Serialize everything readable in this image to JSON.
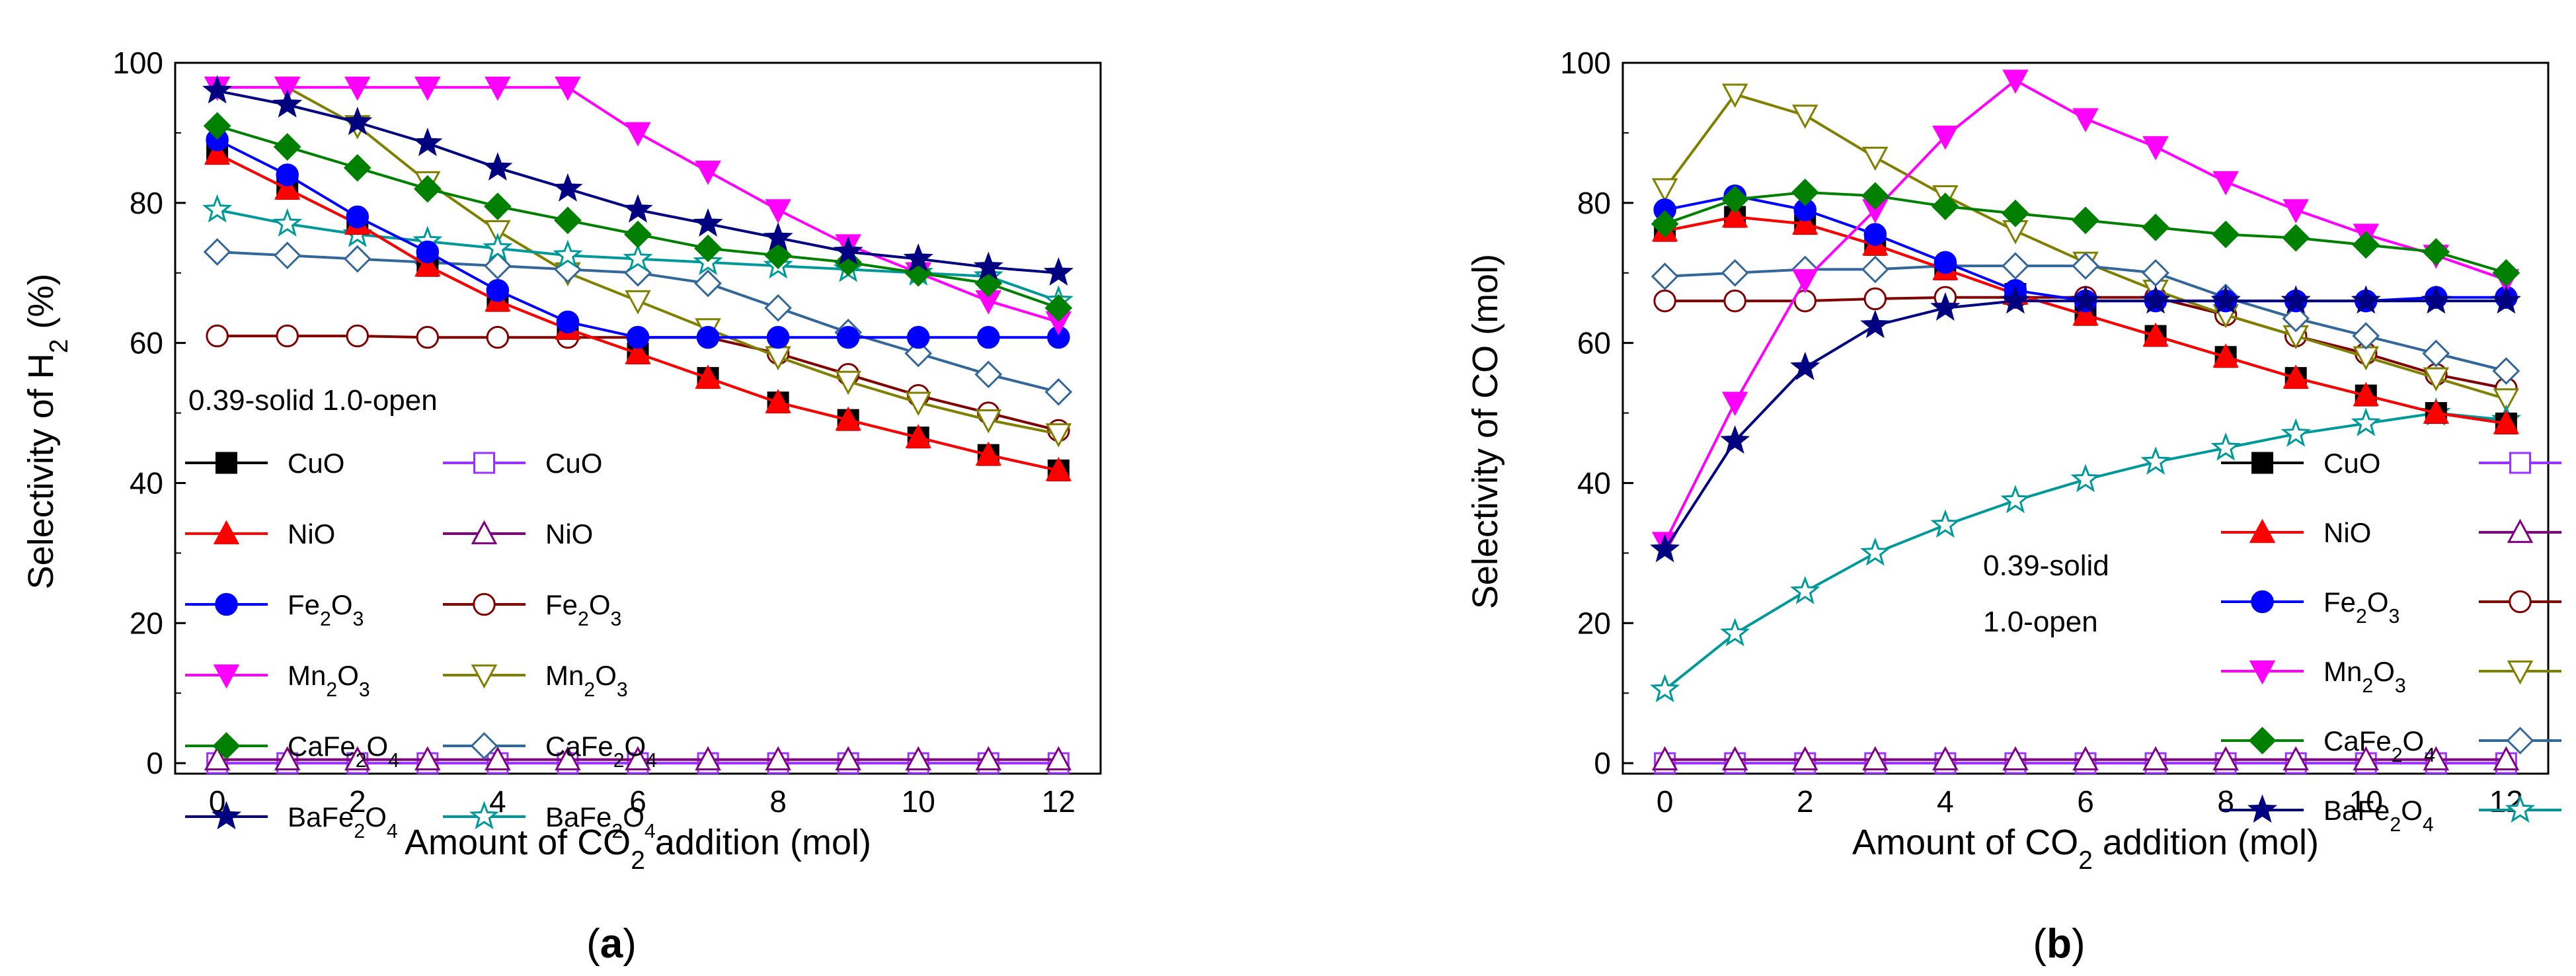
{
  "chart_data": [
    {
      "type": "line",
      "panel_label": "(a)",
      "panel_letter": "a",
      "xlabel": "Amount of CO2 addition (mol)",
      "xlabel_parts": [
        "Amount of CO",
        "2",
        " addition (mol)"
      ],
      "ylabel": "Selectivity of H2 (%)",
      "ylabel_parts": [
        "Selectivity of H",
        "2",
        " (%)"
      ],
      "xlim": [
        -0.6,
        12.6
      ],
      "ylim": [
        -1.5,
        100
      ],
      "xticks": [
        0,
        2,
        4,
        6,
        8,
        10,
        12
      ],
      "yticks": [
        0,
        20,
        40,
        60,
        80,
        100
      ],
      "legend_header": "0.39-solid   1.0-open",
      "notes": [],
      "x": [
        0,
        1,
        2,
        3,
        4,
        5,
        6,
        7,
        8,
        9,
        10,
        11,
        12
      ],
      "series": [
        {
          "name": "CuO",
          "state": "solid",
          "marker": "square",
          "color": "#000000",
          "values": [
            87,
            82,
            77,
            71,
            66,
            62,
            58.5,
            55,
            51.5,
            49,
            46.5,
            44,
            41.8
          ]
        },
        {
          "name": "NiO",
          "state": "solid",
          "marker": "triangle",
          "color": "#ff0000",
          "values": [
            87,
            82,
            77,
            71,
            66,
            62,
            58.5,
            55,
            51.5,
            49,
            46.5,
            44,
            41.8
          ]
        },
        {
          "name": "Fe2O3",
          "state": "solid",
          "marker": "circle",
          "color": "#0000ff",
          "values": [
            89,
            84,
            78,
            73,
            67.5,
            63,
            60.8,
            60.8,
            60.8,
            60.8,
            60.8,
            60.8,
            60.8
          ]
        },
        {
          "name": "Mn2O3",
          "state": "solid",
          "marker": "tri-down",
          "color": "#ff00ff",
          "values": [
            96.5,
            96.5,
            96.5,
            96.5,
            96.5,
            96.5,
            90,
            84.5,
            79,
            74,
            70,
            66,
            63
          ]
        },
        {
          "name": "CaFe2O4",
          "state": "solid",
          "marker": "diamond",
          "color": "#008000",
          "values": [
            91,
            88,
            85,
            82,
            79.5,
            77.5,
            75.5,
            73.5,
            72.5,
            71.5,
            70,
            68.5,
            65
          ]
        },
        {
          "name": "BaFe2O4",
          "state": "solid",
          "marker": "star",
          "color": "#000080",
          "values": [
            96,
            94,
            91.5,
            88.5,
            85,
            82,
            79,
            77,
            75,
            73,
            72,
            70.8,
            70
          ]
        },
        {
          "name": "CuO",
          "state": "open",
          "marker": "square",
          "color": "#9933ff",
          "values": [
            0,
            0,
            0,
            0,
            0,
            0,
            0,
            0,
            0,
            0,
            0,
            0,
            0
          ]
        },
        {
          "name": "NiO",
          "state": "open",
          "marker": "triangle",
          "color": "#800080",
          "values": [
            0.5,
            0.5,
            0.5,
            0.5,
            0.5,
            0.5,
            0.5,
            0.5,
            0.5,
            0.5,
            0.5,
            0.5,
            0.5
          ]
        },
        {
          "name": "Fe2O3",
          "state": "open",
          "marker": "circle",
          "color": "#800000",
          "values": [
            61,
            61,
            61,
            60.8,
            60.8,
            60.8,
            60.8,
            60.8,
            58.5,
            55.5,
            52.5,
            50,
            47.5
          ]
        },
        {
          "name": "Mn2O3",
          "state": "open",
          "marker": "tri-down",
          "color": "#808000",
          "values": [
            96.5,
            96.5,
            91,
            83,
            76,
            70,
            66,
            62,
            58,
            54.5,
            51.5,
            49,
            47
          ]
        },
        {
          "name": "CaFe2O4",
          "state": "open",
          "marker": "diamond",
          "color": "#336699",
          "values": [
            73,
            72.5,
            72,
            71.5,
            71,
            70.5,
            70,
            68.5,
            65,
            61.5,
            58.5,
            55.5,
            53
          ]
        },
        {
          "name": "BaFe2O4",
          "state": "open",
          "marker": "star",
          "color": "#009999",
          "values": [
            79,
            77,
            75.5,
            74.5,
            73.5,
            72.5,
            72,
            71.5,
            71,
            70.5,
            70,
            69.5,
            66
          ]
        }
      ],
      "legend_labels": [
        {
          "left": "CuO",
          "left_sub": "",
          "right": "CuO",
          "right_sub": ""
        },
        {
          "left": "NiO",
          "left_sub": "",
          "right": "NiO",
          "right_sub": ""
        },
        {
          "left": "Fe",
          "left_sub": "2",
          "left_rest": "O",
          "left_sub2": "3",
          "right": "Fe2O3"
        },
        {
          "left": "Mn2O3"
        },
        {
          "left": "CaFe2O4"
        },
        {
          "left": "BaFe2O4"
        }
      ]
    },
    {
      "type": "line",
      "panel_label": "(b)",
      "panel_letter": "b",
      "xlabel": "Amount of CO2 addition (mol)",
      "xlabel_parts": [
        "Amount of CO",
        "2",
        " addition (mol)"
      ],
      "ylabel": "Selectivity of CO (mol)",
      "ylabel_parts": [
        "Selectivity of CO (mol)"
      ],
      "xlim": [
        -0.6,
        12.6
      ],
      "ylim": [
        -1.5,
        100
      ],
      "xticks": [
        0,
        2,
        4,
        6,
        8,
        10,
        12
      ],
      "yticks": [
        0,
        20,
        40,
        60,
        80,
        100
      ],
      "legend_header": "",
      "notes": [
        "0.39-solid",
        "1.0-open"
      ],
      "x": [
        0,
        1,
        2,
        3,
        4,
        5,
        6,
        7,
        8,
        9,
        10,
        11,
        12
      ],
      "series": [
        {
          "name": "CuO",
          "state": "solid",
          "marker": "square",
          "color": "#000000",
          "values": [
            76,
            78,
            77,
            74,
            70.5,
            67,
            64,
            61,
            58,
            55,
            52.5,
            50,
            48.5
          ]
        },
        {
          "name": "NiO",
          "state": "solid",
          "marker": "triangle",
          "color": "#ff0000",
          "values": [
            76,
            78,
            77,
            74,
            70.5,
            67,
            64,
            61,
            58,
            55,
            52.5,
            50,
            48.5
          ]
        },
        {
          "name": "Fe2O3",
          "state": "solid",
          "marker": "circle",
          "color": "#0000ff",
          "values": [
            79,
            81,
            79,
            75.5,
            71.5,
            67.5,
            66,
            66,
            66,
            66,
            66,
            66.5,
            66.5
          ]
        },
        {
          "name": "Mn2O3",
          "state": "solid",
          "marker": "tri-down",
          "color": "#ff00ff",
          "values": [
            31.5,
            51.5,
            69,
            79,
            89.5,
            97.5,
            92,
            88,
            83,
            79,
            75.5,
            72.5,
            69
          ]
        },
        {
          "name": "CaFe2O4",
          "state": "solid",
          "marker": "diamond",
          "color": "#008000",
          "values": [
            77,
            80.5,
            81.5,
            81,
            79.5,
            78.5,
            77.5,
            76.5,
            75.5,
            75,
            74,
            73,
            70
          ]
        },
        {
          "name": "BaFe2O4",
          "state": "solid",
          "marker": "star",
          "color": "#000080",
          "values": [
            30.5,
            46,
            56.5,
            62.5,
            65,
            66,
            66,
            66,
            66,
            66,
            66,
            66,
            66
          ]
        },
        {
          "name": "CuO",
          "state": "open",
          "marker": "square",
          "color": "#9933ff",
          "values": [
            0,
            0,
            0,
            0,
            0,
            0,
            0,
            0,
            0,
            0,
            0,
            0,
            0
          ]
        },
        {
          "name": "NiO",
          "state": "open",
          "marker": "triangle",
          "color": "#800080",
          "values": [
            0.5,
            0.5,
            0.5,
            0.5,
            0.5,
            0.5,
            0.5,
            0.5,
            0.5,
            0.5,
            0.5,
            0.5,
            0.5
          ]
        },
        {
          "name": "Fe2O3",
          "state": "open",
          "marker": "circle",
          "color": "#800000",
          "values": [
            66,
            66,
            66,
            66.3,
            66.5,
            66.5,
            66.5,
            66.5,
            64,
            61,
            58.5,
            55.5,
            53.5
          ]
        },
        {
          "name": "Mn2O3",
          "state": "open",
          "marker": "tri-down",
          "color": "#808000",
          "values": [
            82,
            95.5,
            92.5,
            86.5,
            81,
            76,
            71.5,
            67.5,
            64,
            61,
            58,
            55,
            52
          ]
        },
        {
          "name": "CaFe2O4",
          "state": "open",
          "marker": "diamond",
          "color": "#336699",
          "values": [
            69.5,
            70,
            70.5,
            70.5,
            71,
            71,
            71,
            70,
            66.5,
            63.5,
            61,
            58.5,
            56
          ]
        },
        {
          "name": "BaFe2O4",
          "state": "open",
          "marker": "star",
          "color": "#009999",
          "values": [
            10.5,
            18.5,
            24.5,
            30,
            34,
            37.5,
            40.5,
            43,
            45,
            47,
            48.5,
            50,
            49
          ]
        }
      ]
    }
  ],
  "legend": {
    "rows": [
      {
        "solid": "CuO",
        "open": "CuO"
      },
      {
        "solid": "NiO",
        "open": "NiO"
      },
      {
        "solid": "Fe2O3",
        "open": "Fe2O3"
      },
      {
        "solid": "Mn2O3",
        "open": "Mn2O3"
      },
      {
        "solid": "CaFe2O4",
        "open": "CaFe2O4"
      },
      {
        "solid": "BaFe2O4",
        "open": "BaFe2O4"
      }
    ]
  }
}
